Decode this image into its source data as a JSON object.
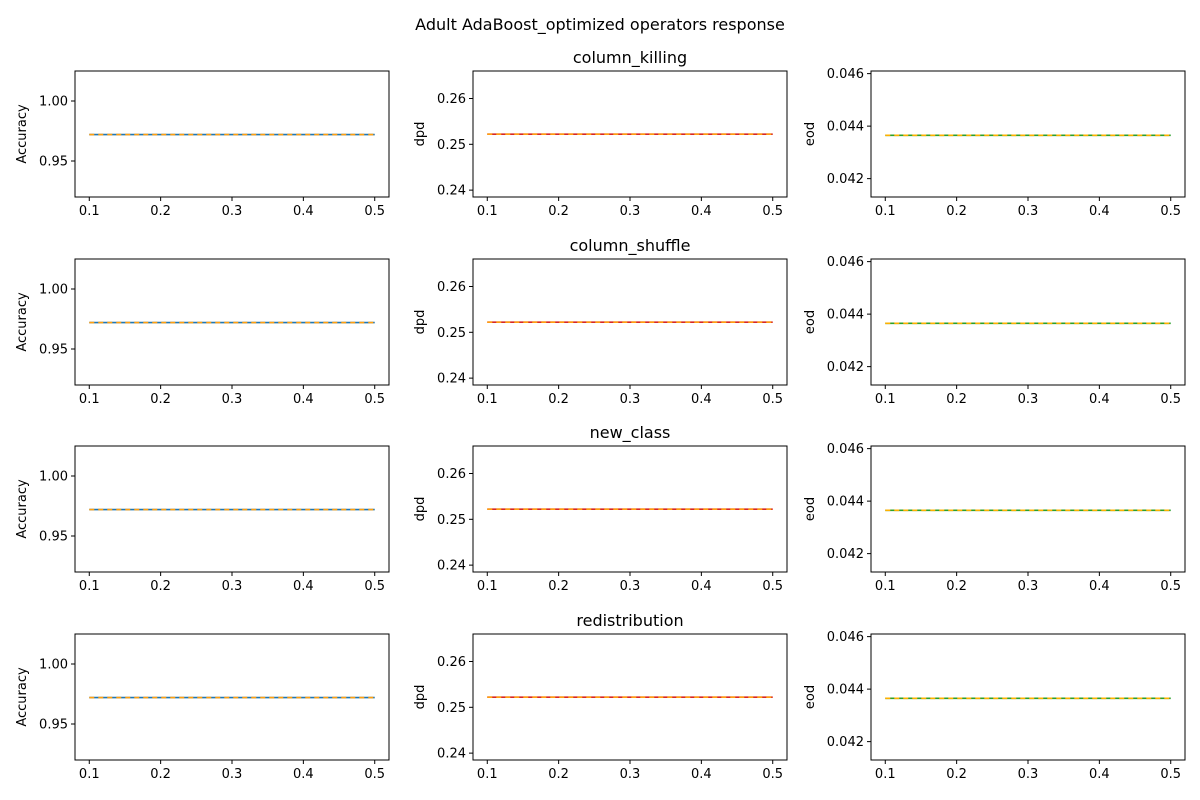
{
  "figure": {
    "title": "Adult AdaBoost_optimized operators response"
  },
  "chart_data": [
    {
      "type": "line",
      "row_title": "column_killing",
      "ylabel": "Accuracy",
      "xlim": [
        0.08,
        0.52
      ],
      "ylim": [
        0.92,
        1.025
      ],
      "xticks": [
        "0.1",
        "0.2",
        "0.3",
        "0.4",
        "0.5"
      ],
      "yticks": [
        "0.95",
        "1.00"
      ],
      "ytick_values": [
        0.95,
        1.0
      ],
      "x": [
        0.1,
        0.5
      ],
      "series": [
        {
          "values": [
            0.972,
            0.972
          ],
          "color": "#1f77b4",
          "dash": "solid"
        },
        {
          "values": [
            0.972,
            0.972
          ],
          "color": "#ff9f10",
          "dash": "dashed"
        }
      ]
    },
    {
      "type": "line",
      "title": "column_killing",
      "ylabel": "dpd",
      "xlim": [
        0.08,
        0.52
      ],
      "ylim": [
        0.2385,
        0.266
      ],
      "xticks": [
        "0.1",
        "0.2",
        "0.3",
        "0.4",
        "0.5"
      ],
      "yticks": [
        "0.24",
        "0.25",
        "0.26"
      ],
      "ytick_values": [
        0.24,
        0.25,
        0.26
      ],
      "x": [
        0.1,
        0.5
      ],
      "series": [
        {
          "values": [
            0.2522,
            0.2522
          ],
          "color": "#d62728",
          "dash": "solid"
        },
        {
          "values": [
            0.2522,
            0.2522
          ],
          "color": "#ff9f10",
          "dash": "dashed"
        }
      ]
    },
    {
      "type": "line",
      "ylabel": "eod",
      "xlim": [
        0.08,
        0.52
      ],
      "ylim": [
        0.0413,
        0.0461
      ],
      "xticks": [
        "0.1",
        "0.2",
        "0.3",
        "0.4",
        "0.5"
      ],
      "yticks": [
        "0.042",
        "0.044",
        "0.046"
      ],
      "ytick_values": [
        0.042,
        0.044,
        0.046
      ],
      "x": [
        0.1,
        0.5
      ],
      "series": [
        {
          "values": [
            0.04365,
            0.04365
          ],
          "color": "#2ca02c",
          "dash": "solid"
        },
        {
          "values": [
            0.04365,
            0.04365
          ],
          "color": "#ffb000",
          "dash": "dashed"
        }
      ]
    },
    {
      "type": "line",
      "ylabel": "Accuracy",
      "xlim": [
        0.08,
        0.52
      ],
      "ylim": [
        0.92,
        1.025
      ],
      "xticks": [
        "0.1",
        "0.2",
        "0.3",
        "0.4",
        "0.5"
      ],
      "yticks": [
        "0.95",
        "1.00"
      ],
      "ytick_values": [
        0.95,
        1.0
      ],
      "x": [
        0.1,
        0.5
      ],
      "series": [
        {
          "values": [
            0.972,
            0.972
          ],
          "color": "#1f77b4",
          "dash": "solid"
        },
        {
          "values": [
            0.972,
            0.972
          ],
          "color": "#ff9f10",
          "dash": "dashed"
        }
      ]
    },
    {
      "type": "line",
      "title": "column_shuffle",
      "ylabel": "dpd",
      "xlim": [
        0.08,
        0.52
      ],
      "ylim": [
        0.2385,
        0.266
      ],
      "xticks": [
        "0.1",
        "0.2",
        "0.3",
        "0.4",
        "0.5"
      ],
      "yticks": [
        "0.24",
        "0.25",
        "0.26"
      ],
      "ytick_values": [
        0.24,
        0.25,
        0.26
      ],
      "x": [
        0.1,
        0.5
      ],
      "series": [
        {
          "values": [
            0.2522,
            0.2522
          ],
          "color": "#d62728",
          "dash": "solid"
        },
        {
          "values": [
            0.2522,
            0.2522
          ],
          "color": "#ff9f10",
          "dash": "dashed"
        }
      ]
    },
    {
      "type": "line",
      "ylabel": "eod",
      "xlim": [
        0.08,
        0.52
      ],
      "ylim": [
        0.0413,
        0.0461
      ],
      "xticks": [
        "0.1",
        "0.2",
        "0.3",
        "0.4",
        "0.5"
      ],
      "yticks": [
        "0.042",
        "0.044",
        "0.046"
      ],
      "ytick_values": [
        0.042,
        0.044,
        0.046
      ],
      "x": [
        0.1,
        0.5
      ],
      "series": [
        {
          "values": [
            0.04365,
            0.04365
          ],
          "color": "#2ca02c",
          "dash": "solid"
        },
        {
          "values": [
            0.04365,
            0.04365
          ],
          "color": "#ffb000",
          "dash": "dashed"
        }
      ]
    },
    {
      "type": "line",
      "ylabel": "Accuracy",
      "xlim": [
        0.08,
        0.52
      ],
      "ylim": [
        0.92,
        1.025
      ],
      "xticks": [
        "0.1",
        "0.2",
        "0.3",
        "0.4",
        "0.5"
      ],
      "yticks": [
        "0.95",
        "1.00"
      ],
      "ytick_values": [
        0.95,
        1.0
      ],
      "x": [
        0.1,
        0.5
      ],
      "series": [
        {
          "values": [
            0.972,
            0.972
          ],
          "color": "#1f77b4",
          "dash": "solid"
        },
        {
          "values": [
            0.972,
            0.972
          ],
          "color": "#ff9f10",
          "dash": "dashed"
        }
      ]
    },
    {
      "type": "line",
      "title": "new_class",
      "ylabel": "dpd",
      "xlim": [
        0.08,
        0.52
      ],
      "ylim": [
        0.2385,
        0.266
      ],
      "xticks": [
        "0.1",
        "0.2",
        "0.3",
        "0.4",
        "0.5"
      ],
      "yticks": [
        "0.24",
        "0.25",
        "0.26"
      ],
      "ytick_values": [
        0.24,
        0.25,
        0.26
      ],
      "x": [
        0.1,
        0.5
      ],
      "series": [
        {
          "values": [
            0.2522,
            0.2522
          ],
          "color": "#d62728",
          "dash": "solid"
        },
        {
          "values": [
            0.2522,
            0.2522
          ],
          "color": "#ff9f10",
          "dash": "dashed"
        }
      ]
    },
    {
      "type": "line",
      "ylabel": "eod",
      "xlim": [
        0.08,
        0.52
      ],
      "ylim": [
        0.0413,
        0.0461
      ],
      "xticks": [
        "0.1",
        "0.2",
        "0.3",
        "0.4",
        "0.5"
      ],
      "yticks": [
        "0.042",
        "0.044",
        "0.046"
      ],
      "ytick_values": [
        0.042,
        0.044,
        0.046
      ],
      "x": [
        0.1,
        0.5
      ],
      "series": [
        {
          "values": [
            0.04365,
            0.04365
          ],
          "color": "#2ca02c",
          "dash": "solid"
        },
        {
          "values": [
            0.04365,
            0.04365
          ],
          "color": "#ffb000",
          "dash": "dashed"
        }
      ]
    },
    {
      "type": "line",
      "ylabel": "Accuracy",
      "xlim": [
        0.08,
        0.52
      ],
      "ylim": [
        0.92,
        1.025
      ],
      "xticks": [
        "0.1",
        "0.2",
        "0.3",
        "0.4",
        "0.5"
      ],
      "yticks": [
        "0.95",
        "1.00"
      ],
      "ytick_values": [
        0.95,
        1.0
      ],
      "x": [
        0.1,
        0.5
      ],
      "series": [
        {
          "values": [
            0.972,
            0.972
          ],
          "color": "#1f77b4",
          "dash": "solid"
        },
        {
          "values": [
            0.972,
            0.972
          ],
          "color": "#ff9f10",
          "dash": "dashed"
        }
      ]
    },
    {
      "type": "line",
      "title": "redistribution",
      "ylabel": "dpd",
      "xlim": [
        0.08,
        0.52
      ],
      "ylim": [
        0.2385,
        0.266
      ],
      "xticks": [
        "0.1",
        "0.2",
        "0.3",
        "0.4",
        "0.5"
      ],
      "yticks": [
        "0.24",
        "0.25",
        "0.26"
      ],
      "ytick_values": [
        0.24,
        0.25,
        0.26
      ],
      "x": [
        0.1,
        0.5
      ],
      "series": [
        {
          "values": [
            0.2522,
            0.2522
          ],
          "color": "#d62728",
          "dash": "solid"
        },
        {
          "values": [
            0.2522,
            0.2522
          ],
          "color": "#ff9f10",
          "dash": "dashed"
        }
      ]
    },
    {
      "type": "line",
      "ylabel": "eod",
      "xlim": [
        0.08,
        0.52
      ],
      "ylim": [
        0.0413,
        0.0461
      ],
      "xticks": [
        "0.1",
        "0.2",
        "0.3",
        "0.4",
        "0.5"
      ],
      "yticks": [
        "0.042",
        "0.044",
        "0.046"
      ],
      "ytick_values": [
        0.042,
        0.044,
        0.046
      ],
      "x": [
        0.1,
        0.5
      ],
      "series": [
        {
          "values": [
            0.04365,
            0.04365
          ],
          "color": "#2ca02c",
          "dash": "solid"
        },
        {
          "values": [
            0.04365,
            0.04365
          ],
          "color": "#ffb000",
          "dash": "dashed"
        }
      ]
    }
  ]
}
